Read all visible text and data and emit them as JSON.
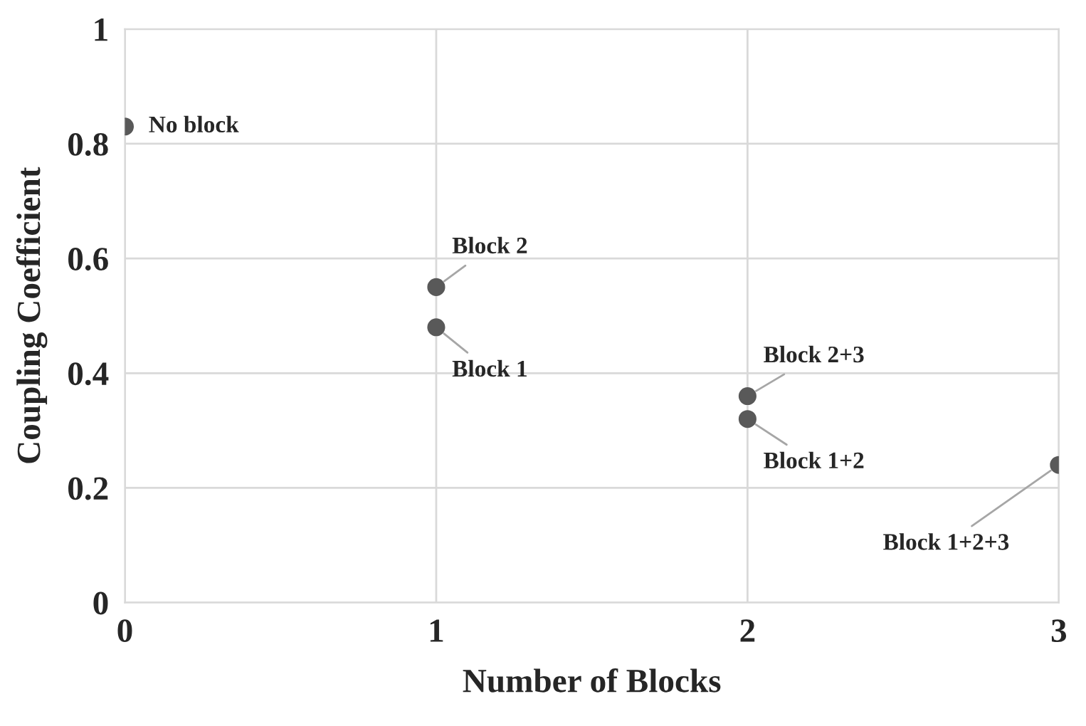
{
  "chart_data": {
    "type": "scatter",
    "xlabel": "Number of Blocks",
    "ylabel": "Coupling Coefficient",
    "x": [
      0,
      1,
      1,
      2,
      2,
      3
    ],
    "series": [
      {
        "color": "#595959",
        "values": [
          0.83,
          0.55,
          0.48,
          0.36,
          0.32,
          0.24
        ]
      }
    ],
    "annotations": [
      {
        "text": "No block",
        "x": 0,
        "y": 0.83
      },
      {
        "text": "Block 2",
        "x": 1,
        "y": 0.55
      },
      {
        "text": "Block 1",
        "x": 1,
        "y": 0.48
      },
      {
        "text": "Block 2+3",
        "x": 2,
        "y": 0.36
      },
      {
        "text": "Block 1+2",
        "x": 2,
        "y": 0.32
      },
      {
        "text": "Block 1+2+3",
        "x": 3,
        "y": 0.24
      }
    ],
    "xlim": [
      0,
      3
    ],
    "xticks": [
      0,
      1,
      2,
      3
    ],
    "ylim": [
      0,
      1
    ],
    "yticks": [
      0,
      0.2,
      0.4,
      0.6,
      0.8,
      1
    ],
    "grid": true,
    "marker": "circle",
    "legend": false
  }
}
